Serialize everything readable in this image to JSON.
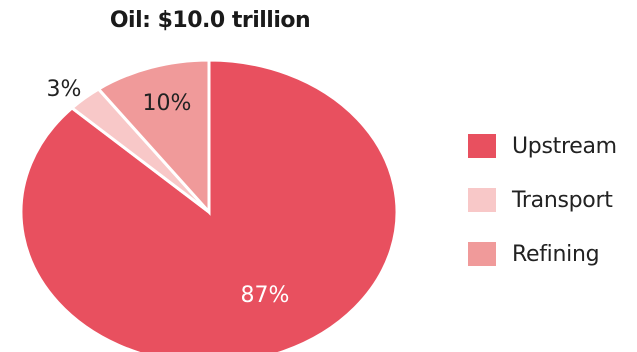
{
  "chart_data": {
    "type": "pie",
    "title": "Oil: $10.0 trillion",
    "categories": [
      "Upstream",
      "Transport",
      "Refining"
    ],
    "values": [
      87,
      3,
      10
    ],
    "labels": [
      "87%",
      "3%",
      "10%"
    ],
    "colors": [
      "#e8505f",
      "#f8c8c8",
      "#f09a9a"
    ],
    "label_colors": [
      "#ffffff",
      "#222222",
      "#222222"
    ],
    "legend": "right"
  }
}
